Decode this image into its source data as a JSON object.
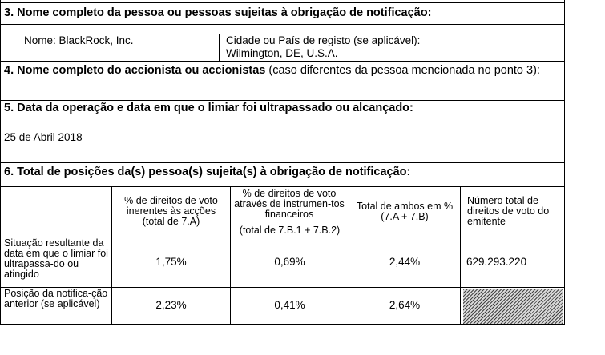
{
  "section3": {
    "heading": "3. Nome completo da pessoa ou pessoas sujeitas à obrigação de notificação:",
    "name": "Nome: BlackRock, Inc.",
    "city_label": "Cidade ou País de registo (se aplicável):",
    "city_value": "Wilmington, DE, U.S.A."
  },
  "section4": {
    "heading_bold": "4. Nome completo do accionista ou accionistas",
    "heading_normal": " (caso diferentes da pessoa mencionada no ponto 3):"
  },
  "section5": {
    "heading": "5. Data da operação e data em que o limiar foi ultrapassado ou alcançado:",
    "date": "25 de Abril 2018"
  },
  "section6": {
    "heading": "6. Total de posições da(s) pessoa(s) sujeita(s) à obrigação de notificação:",
    "columns": [
      "% de direitos de voto inerentes às acções (total de 7.A)",
      "% de direitos de voto através de instrumen-tos financeiros",
      "(total de 7.B.1 + 7.B.2)",
      "Total de ambos em % (7.A + 7.B)",
      "Número total de direitos de voto do emitente"
    ],
    "rows": [
      {
        "label": "Situação resultante da data em que o limiar foi ultrapassa-do ou atingido",
        "values": [
          "1,75%",
          "0,69%",
          "2,44%",
          "629.293.220"
        ]
      },
      {
        "label": "Posição da notifica-ção anterior (se aplicável)",
        "values": [
          "2,23%",
          "0,41%",
          "2,64%"
        ]
      }
    ]
  }
}
